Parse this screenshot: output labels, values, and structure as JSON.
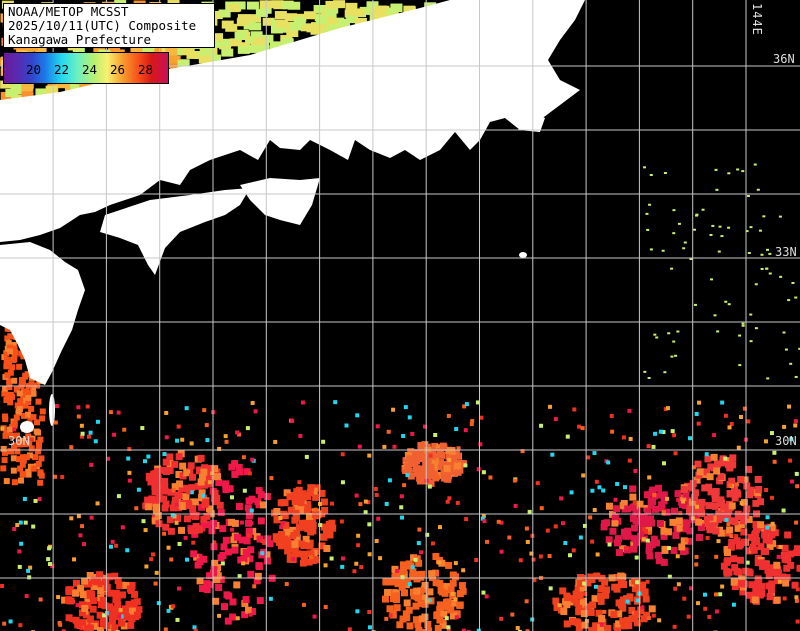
{
  "title": {
    "line1": "NOAA/METOP MCSST",
    "line2": "2025/10/11(UTC) Composite",
    "line3": "Kanagawa Prefecture"
  },
  "colorbar": {
    "ticks": [
      "20",
      "22",
      "24",
      "26",
      "28"
    ],
    "unit_range": [
      18.5,
      30
    ]
  },
  "grid_labels": {
    "lon_144": "144E",
    "lat_36": "36N",
    "lat_33": "33N",
    "lat_30_left": "30N",
    "lat_30_right": "30N"
  },
  "colors": {
    "land": "#ffffff",
    "no_data": "#000000",
    "grid": "#c8c8c8"
  }
}
